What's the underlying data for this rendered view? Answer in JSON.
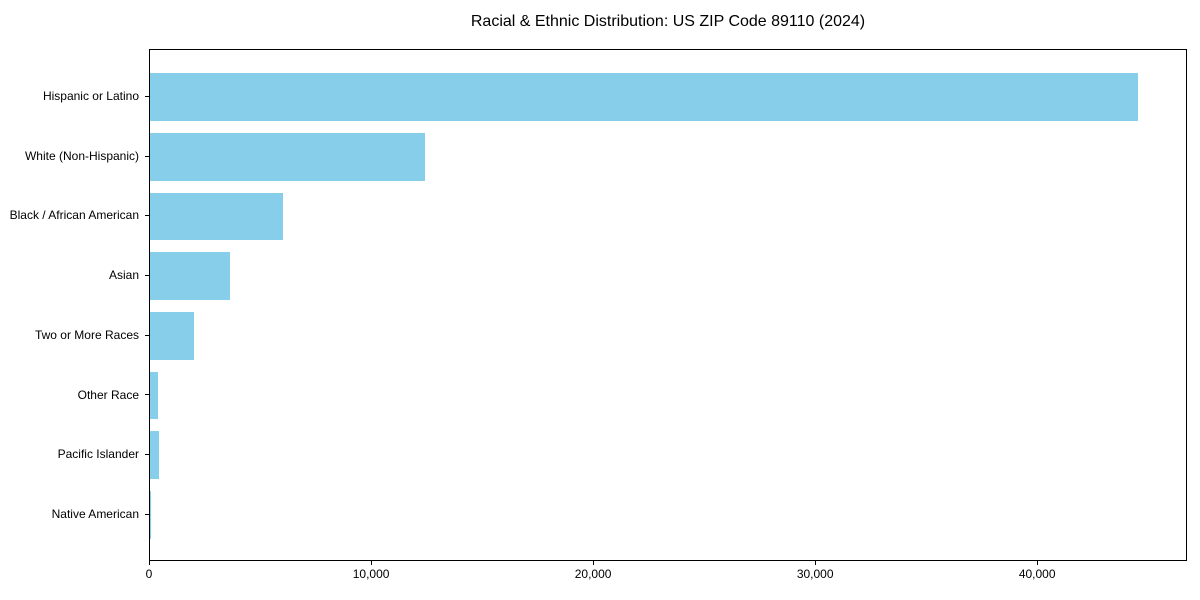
{
  "chart_data": {
    "type": "bar",
    "orientation": "horizontal",
    "title": "Racial & Ethnic Distribution: US ZIP Code 89110 (2024)",
    "categories": [
      "Hispanic or Latino",
      "White (Non-Hispanic)",
      "Black / African American",
      "Asian",
      "Two or More Races",
      "Other Race",
      "Pacific Islander",
      "Native American"
    ],
    "values": [
      44500,
      12400,
      6000,
      3600,
      2000,
      380,
      420,
      60
    ],
    "xlabel": "",
    "ylabel": "",
    "xlim": [
      0,
      46700
    ],
    "xticks": [
      0,
      10000,
      20000,
      30000,
      40000
    ],
    "xtick_labels": [
      "0",
      "10,000",
      "20,000",
      "30,000",
      "40,000"
    ],
    "bar_color": "#87CEEB",
    "axis_color": "#000000",
    "background_color": "#ffffff",
    "grid": false,
    "legend": null
  }
}
